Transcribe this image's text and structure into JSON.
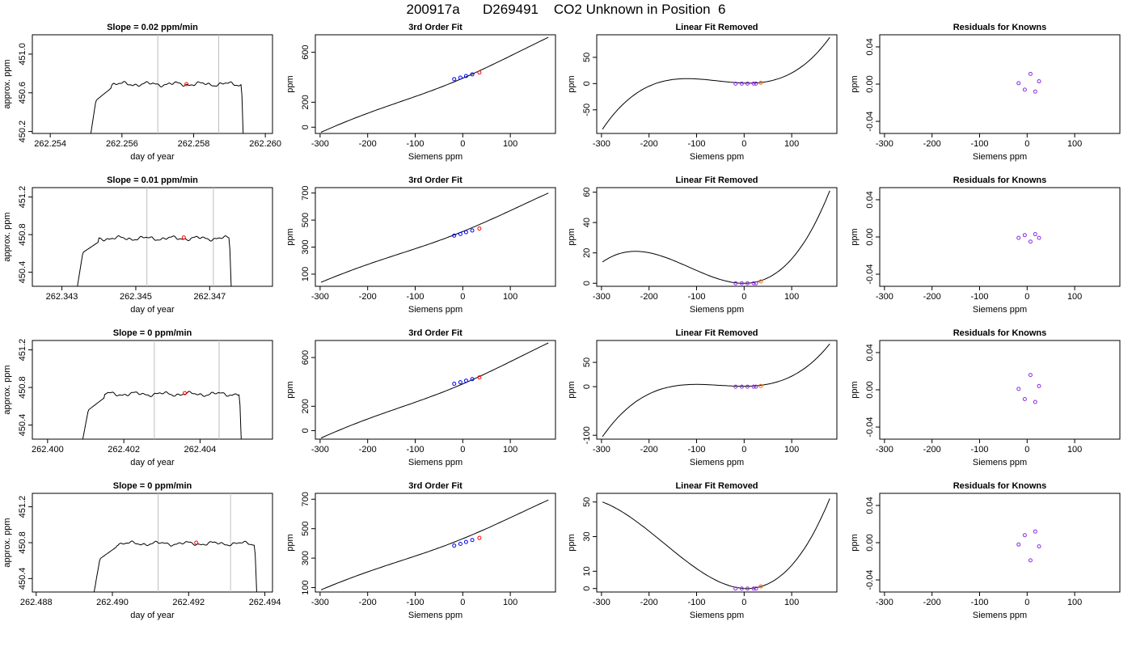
{
  "title": "200917a      D269491    CO2 Unknown in Position  6",
  "colors": {
    "line": "#000000",
    "known": "#0000ff",
    "unknown": "#ff0000",
    "residual": "#8a2be2",
    "vline": "#bebebe"
  },
  "chart_data": [
    {
      "type": "line",
      "panel": "time",
      "title": "Slope =  0.02  ppm/min",
      "xlabel": "day of year",
      "ylabel": "approx. ppm",
      "xlim": [
        262.2535,
        262.2602
      ],
      "ylim": [
        450.18,
        451.2
      ],
      "xticks": [
        "262.254",
        "262.256",
        "262.258",
        "262.260"
      ],
      "yticks": [
        "450.2",
        "450.6",
        "451.0"
      ],
      "vlines": [
        262.257,
        262.2587
      ],
      "marker": {
        "x": 262.2578,
        "y": 450.69
      },
      "start": 262.2551,
      "end": 262.2594,
      "plateau": 450.69,
      "ramp_start": 450.1,
      "ramp_knee": 450.52
    },
    {
      "type": "line",
      "panel": "fit",
      "title": "3rd Order Fit",
      "xlabel": "Siemens ppm",
      "ylabel": "ppm",
      "xlim": [
        -310,
        195
      ],
      "ylim": [
        -50,
        740
      ],
      "xticks": [
        "-300",
        "-200",
        "-100",
        "0",
        "100"
      ],
      "yticks": [
        "0",
        "200",
        "600"
      ],
      "curve": [
        -298,
        -40,
        180,
        720
      ],
      "knowns_x": [
        -18,
        -5,
        7,
        20
      ],
      "knowns_y": [
        385,
        397,
        410,
        423
      ],
      "unknown": {
        "x": 35,
        "y": 437
      }
    },
    {
      "type": "line",
      "panel": "linear",
      "title": "Linear Fit Removed",
      "xlabel": "Siemens ppm",
      "ylabel": "ppm",
      "xlim": [
        -310,
        195
      ],
      "ylim": [
        -95,
        93
      ],
      "xticks": [
        "-300",
        "-200",
        "-100",
        "0",
        "100"
      ],
      "yticks": [
        "-50",
        "0",
        "50"
      ],
      "curve": [
        -298,
        -87,
        -200,
        -5,
        180,
        88,
        0.9
      ],
      "knowns_x": [
        -18,
        -5,
        7,
        20,
        25
      ],
      "knowns_y": [
        0,
        0,
        0,
        0,
        0
      ],
      "unknown": {
        "x": 35,
        "y": 1.5
      }
    },
    {
      "type": "scatter",
      "panel": "resid",
      "title": "Residuals for Knowns",
      "xlabel": "Siemens ppm",
      "ylabel": "ppm",
      "xlim": [
        -310,
        195
      ],
      "ylim": [
        -0.053,
        0.053
      ],
      "xticks": [
        "-300",
        "-200",
        "-100",
        "0",
        "100"
      ],
      "yticks": [
        "-0.04",
        "0.00",
        "0.04"
      ],
      "x": [
        -18,
        -5,
        7,
        17,
        25
      ],
      "y": [
        0.001,
        -0.006,
        0.011,
        -0.008,
        0.003
      ]
    },
    {
      "type": "line",
      "panel": "time",
      "title": "Slope =  0.01  ppm/min",
      "xlabel": "day of year",
      "ylabel": "approx. ppm",
      "xlim": [
        262.3422,
        262.3487
      ],
      "ylim": [
        450.25,
        451.3
      ],
      "xticks": [
        "262.343",
        "262.345",
        "262.347"
      ],
      "yticks": [
        "450.4",
        "450.8",
        "451.2"
      ],
      "vlines": [
        262.3453,
        262.3471
      ],
      "marker": {
        "x": 262.3463,
        "y": 450.77
      },
      "start": 262.3434,
      "end": 262.3476,
      "plateau": 450.76,
      "ramp_start": 450.2,
      "ramp_knee": 450.61
    },
    {
      "type": "line",
      "panel": "fit",
      "title": "3rd Order Fit",
      "xlabel": "Siemens ppm",
      "ylabel": "ppm",
      "xlim": [
        -310,
        195
      ],
      "ylim": [
        10,
        740
      ],
      "xticks": [
        "-300",
        "-200",
        "-100",
        "0",
        "100"
      ],
      "yticks": [
        "100",
        "300",
        "500",
        "700"
      ],
      "curve": [
        -298,
        40,
        180,
        700
      ],
      "knowns_x": [
        -18,
        -5,
        7,
        20
      ],
      "knowns_y": [
        385,
        397,
        410,
        423
      ],
      "unknown": {
        "x": 35,
        "y": 437
      }
    },
    {
      "type": "line",
      "panel": "linear",
      "title": "Linear Fit Removed",
      "xlabel": "Siemens ppm",
      "ylabel": "ppm",
      "xlim": [
        -310,
        195
      ],
      "ylim": [
        -2,
        63
      ],
      "xticks": [
        "-300",
        "-200",
        "-100",
        "0",
        "100"
      ],
      "yticks": [
        "0",
        "20",
        "40",
        "60"
      ],
      "curve": [
        -298,
        14,
        -225,
        21,
        180,
        61,
        0
      ],
      "knowns_x": [
        -18,
        -5,
        7,
        20,
        25
      ],
      "knowns_y": [
        0,
        0,
        0,
        0,
        0
      ],
      "unknown": {
        "x": 35,
        "y": 1.2
      }
    },
    {
      "type": "scatter",
      "panel": "resid",
      "title": "Residuals for Knowns",
      "xlabel": "Siemens ppm",
      "ylabel": "ppm",
      "xlim": [
        -310,
        195
      ],
      "ylim": [
        -0.053,
        0.053
      ],
      "xticks": [
        "-300",
        "-200",
        "-100",
        "0",
        "100"
      ],
      "yticks": [
        "-0.04",
        "0.00",
        "0.04"
      ],
      "x": [
        -18,
        -5,
        7,
        17,
        25
      ],
      "y": [
        -0.001,
        0.002,
        -0.005,
        0.003,
        -0.001
      ]
    },
    {
      "type": "line",
      "panel": "time",
      "title": "Slope =  0  ppm/min",
      "xlabel": "day of year",
      "ylabel": "approx. ppm",
      "xlim": [
        262.3996,
        262.4059
      ],
      "ylim": [
        450.25,
        451.3
      ],
      "xticks": [
        "262.400",
        "262.402",
        "262.404"
      ],
      "yticks": [
        "450.4",
        "450.8",
        "451.2"
      ],
      "vlines": [
        262.4028,
        262.4045
      ],
      "marker": {
        "x": 262.4036,
        "y": 450.74
      },
      "start": 262.4009,
      "end": 262.4051,
      "plateau": 450.73,
      "ramp_start": 450.2,
      "ramp_knee": 450.56
    },
    {
      "type": "line",
      "panel": "fit",
      "title": "3rd Order Fit",
      "xlabel": "Siemens ppm",
      "ylabel": "ppm",
      "xlim": [
        -310,
        195
      ],
      "ylim": [
        -70,
        740
      ],
      "xticks": [
        "-300",
        "-200",
        "-100",
        "0",
        "100"
      ],
      "yticks": [
        "0",
        "200",
        "600"
      ],
      "curve": [
        -298,
        -60,
        180,
        720
      ],
      "knowns_x": [
        -18,
        -5,
        7,
        20
      ],
      "knowns_y": [
        385,
        397,
        410,
        423
      ],
      "unknown": {
        "x": 35,
        "y": 437
      }
    },
    {
      "type": "line",
      "panel": "linear",
      "title": "Linear Fit Removed",
      "xlabel": "Siemens ppm",
      "ylabel": "ppm",
      "xlim": [
        -310,
        195
      ],
      "ylim": [
        -108,
        95
      ],
      "xticks": [
        "-300",
        "-200",
        "-100",
        "0",
        "100"
      ],
      "yticks": [
        "-100",
        "0",
        "50"
      ],
      "curve": [
        -298,
        -103,
        -200,
        -15,
        180,
        88,
        0.9
      ],
      "knowns_x": [
        -18,
        -5,
        7,
        20,
        25
      ],
      "knowns_y": [
        0,
        0,
        0,
        0,
        0
      ],
      "unknown": {
        "x": 35,
        "y": 1.5
      }
    },
    {
      "type": "scatter",
      "panel": "resid",
      "title": "Residuals for Knowns",
      "xlabel": "Siemens ppm",
      "ylabel": "ppm",
      "xlim": [
        -310,
        195
      ],
      "ylim": [
        -0.053,
        0.053
      ],
      "xticks": [
        "-300",
        "-200",
        "-100",
        "0",
        "100"
      ],
      "yticks": [
        "-0.04",
        "0.00",
        "0.04"
      ],
      "x": [
        -18,
        -5,
        7,
        17,
        25
      ],
      "y": [
        0.001,
        -0.01,
        0.016,
        -0.013,
        0.004
      ]
    },
    {
      "type": "line",
      "panel": "time",
      "title": "Slope =  0  ppm/min",
      "xlabel": "day of year",
      "ylabel": "approx. ppm",
      "xlim": [
        262.4879,
        262.4942
      ],
      "ylim": [
        450.25,
        451.35
      ],
      "xticks": [
        "262.488",
        "262.490",
        "262.492",
        "262.494"
      ],
      "yticks": [
        "450.4",
        "450.8",
        "451.2"
      ],
      "vlines": [
        262.4912,
        262.4931
      ],
      "marker": {
        "x": 262.4922,
        "y": 450.8
      },
      "start": 262.4895,
      "end": 262.4938,
      "plateau": 450.79,
      "ramp_start": 450.2,
      "ramp_knee": 450.62
    },
    {
      "type": "line",
      "panel": "fit",
      "title": "3rd Order Fit",
      "xlabel": "Siemens ppm",
      "ylabel": "ppm",
      "xlim": [
        -310,
        195
      ],
      "ylim": [
        70,
        740
      ],
      "xticks": [
        "-300",
        "-200",
        "-100",
        "0",
        "100"
      ],
      "yticks": [
        "100",
        "300",
        "500",
        "700"
      ],
      "curve": [
        -298,
        85,
        180,
        695
      ],
      "knowns_x": [
        -18,
        -5,
        7,
        20
      ],
      "knowns_y": [
        385,
        397,
        410,
        423
      ],
      "unknown": {
        "x": 35,
        "y": 437
      }
    },
    {
      "type": "line",
      "panel": "linear",
      "title": "Linear Fit Removed",
      "xlabel": "Siemens ppm",
      "ylabel": "ppm",
      "xlim": [
        -310,
        195
      ],
      "ylim": [
        -2,
        55
      ],
      "xticks": [
        "-300",
        "-200",
        "-100",
        "0",
        "100"
      ],
      "yticks": [
        "0",
        "10",
        "30",
        "50"
      ],
      "curve": [
        -298,
        50,
        180,
        52,
        0
      ],
      "knowns_x": [
        -18,
        -5,
        7,
        20,
        25
      ],
      "knowns_y": [
        0,
        0,
        0,
        0,
        0
      ],
      "unknown": {
        "x": 35,
        "y": 1.2
      }
    },
    {
      "type": "scatter",
      "panel": "resid",
      "title": "Residuals for Knowns",
      "xlabel": "Siemens ppm",
      "ylabel": "ppm",
      "xlim": [
        -310,
        195
      ],
      "ylim": [
        -0.053,
        0.053
      ],
      "xticks": [
        "-300",
        "-200",
        "-100",
        "0",
        "100"
      ],
      "yticks": [
        "-0.04",
        "0.00",
        "0.04"
      ],
      "x": [
        -18,
        -5,
        7,
        17,
        25
      ],
      "y": [
        -0.002,
        0.008,
        -0.019,
        0.012,
        -0.004
      ]
    }
  ]
}
